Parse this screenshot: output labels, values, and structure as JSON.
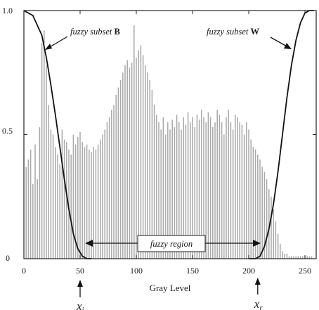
{
  "chart_data": {
    "type": "bar",
    "xlabel": "Gray Level",
    "ylabel": "",
    "title": "",
    "xlim": [
      0,
      260
    ],
    "ylim": [
      0,
      1.0
    ],
    "x_ticks": [
      0,
      50,
      100,
      150,
      200,
      250
    ],
    "y_ticks": [
      0,
      0.5,
      1.0
    ],
    "y_tick_labels": [
      "0",
      "0.5",
      "1.0"
    ],
    "grid": false,
    "histogram": {
      "start": 2,
      "step": 2,
      "values": [
        0.37,
        0.4,
        0.44,
        0.3,
        0.46,
        0.32,
        0.53,
        0.87,
        0.92,
        0.78,
        0.62,
        0.52,
        0.5,
        0.45,
        0.42,
        0.38,
        0.52,
        0.48,
        0.47,
        0.44,
        0.42,
        0.5,
        0.46,
        0.49,
        0.51,
        0.47,
        0.45,
        0.46,
        0.44,
        0.43,
        0.45,
        0.44,
        0.46,
        0.48,
        0.5,
        0.52,
        0.55,
        0.57,
        0.6,
        0.62,
        0.66,
        0.69,
        0.72,
        0.75,
        0.78,
        0.8,
        0.77,
        0.79,
        0.94,
        0.81,
        0.84,
        0.86,
        0.82,
        0.78,
        0.75,
        0.72,
        0.68,
        0.62,
        0.58,
        0.55,
        0.52,
        0.57,
        0.5,
        0.55,
        0.52,
        0.56,
        0.53,
        0.58,
        0.55,
        0.52,
        0.57,
        0.54,
        0.59,
        0.55,
        0.57,
        0.53,
        0.58,
        0.56,
        0.6,
        0.57,
        0.55,
        0.59,
        0.57,
        0.53,
        0.55,
        0.6,
        0.58,
        0.55,
        0.5,
        0.57,
        0.6,
        0.55,
        0.52,
        0.58,
        0.57,
        0.55,
        0.54,
        0.5,
        0.55,
        0.52,
        0.48,
        0.45,
        0.44,
        0.42,
        0.4,
        0.37,
        0.35,
        0.32,
        0.28,
        0.25,
        0.2,
        0.15,
        0.1,
        0.06,
        0.03,
        0.02,
        0.02,
        0.01,
        0.01,
        0.01,
        0.01,
        0.01,
        0.01,
        0.01,
        0.01,
        0.01,
        0.01,
        0.01
      ]
    },
    "curves": [
      {
        "name": "fuzzy subset B",
        "x": [
          0,
          8,
          16,
          20,
          24,
          28,
          32,
          36,
          40,
          44,
          48,
          52,
          56,
          60
        ],
        "y": [
          1.0,
          0.98,
          0.9,
          0.81,
          0.7,
          0.58,
          0.45,
          0.32,
          0.2,
          0.1,
          0.04,
          0.01,
          0.0,
          0.0
        ]
      },
      {
        "name": "fuzzy subset W",
        "x": [
          200,
          206,
          210,
          214,
          218,
          222,
          226,
          230,
          234,
          238,
          242,
          246,
          250,
          254,
          258
        ],
        "y": [
          0.0,
          0.0,
          0.01,
          0.05,
          0.12,
          0.22,
          0.35,
          0.5,
          0.65,
          0.78,
          0.88,
          0.95,
          0.99,
          1.0,
          1.0
        ]
      }
    ],
    "annotations": {
      "subset_b_prefix": "fuzzy subset ",
      "subset_b_letter": "B",
      "subset_w_prefix": "fuzzy subset ",
      "subset_w_letter": "W",
      "fuzzy_region": "fuzzy region",
      "xi_main": "x",
      "xi_sub": "i",
      "xr_main": "x",
      "xr_sub": "r",
      "xi_value": 50,
      "xr_value": 208
    }
  }
}
